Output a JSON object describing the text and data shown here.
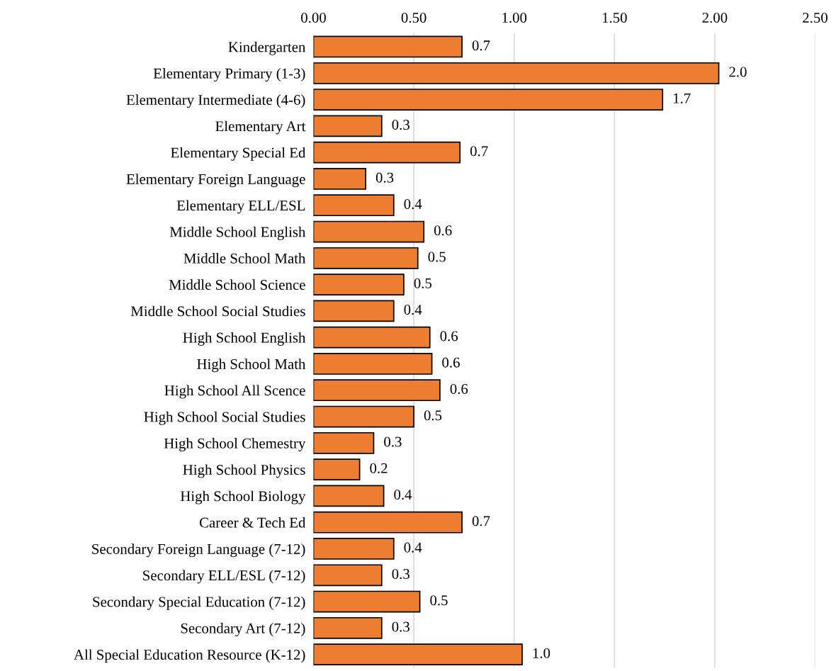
{
  "chart_data": {
    "type": "bar",
    "orientation": "horizontal",
    "categories": [
      "Kindergarten",
      "Elementary Primary (1-3)",
      "Elementary Intermediate (4-6)",
      "Elementary Art",
      "Elementary Special Ed",
      "Elementary Foreign Language",
      "Elementary ELL/ESL",
      "Middle School English",
      "Middle School Math",
      "Middle School Science",
      "Middle School Social Studies",
      "High School English",
      "High School Math",
      "High School All Scence",
      "High School Social Studies",
      "High School Chemestry",
      "High School Physics",
      "High School Biology",
      "Career & Tech Ed",
      "Secondary Foreign Language (7-12)",
      "Secondary ELL/ESL (7-12)",
      "Secondary Special Education (7-12)",
      "Secondary Art (7-12)",
      "All Special Education Resource (K-12)"
    ],
    "values": [
      0.74,
      2.02,
      1.74,
      0.34,
      0.73,
      0.26,
      0.4,
      0.55,
      0.52,
      0.45,
      0.4,
      0.58,
      0.59,
      0.63,
      0.5,
      0.3,
      0.23,
      0.35,
      0.74,
      0.4,
      0.34,
      0.53,
      0.34,
      1.04
    ],
    "value_labels": [
      "0.7",
      "2.0",
      "1.7",
      "0.3",
      "0.7",
      "0.3",
      "0.4",
      "0.6",
      "0.5",
      "0.5",
      "0.4",
      "0.6",
      "0.6",
      "0.6",
      "0.5",
      "0.3",
      "0.2",
      "0.4",
      "0.7",
      "0.4",
      "0.3",
      "0.5",
      "0.3",
      "1.0"
    ],
    "color": "#ed7d31",
    "xlim": [
      0,
      2.5
    ],
    "xticks": [
      {
        "value": 0,
        "label": "0.00"
      },
      {
        "value": 0.5,
        "label": "0.50"
      },
      {
        "value": 1,
        "label": "1.00"
      },
      {
        "value": 1.5,
        "label": "1.50"
      },
      {
        "value": 2,
        "label": "2.00"
      },
      {
        "value": 2.5,
        "label": "2.50"
      }
    ],
    "grid": "x"
  }
}
